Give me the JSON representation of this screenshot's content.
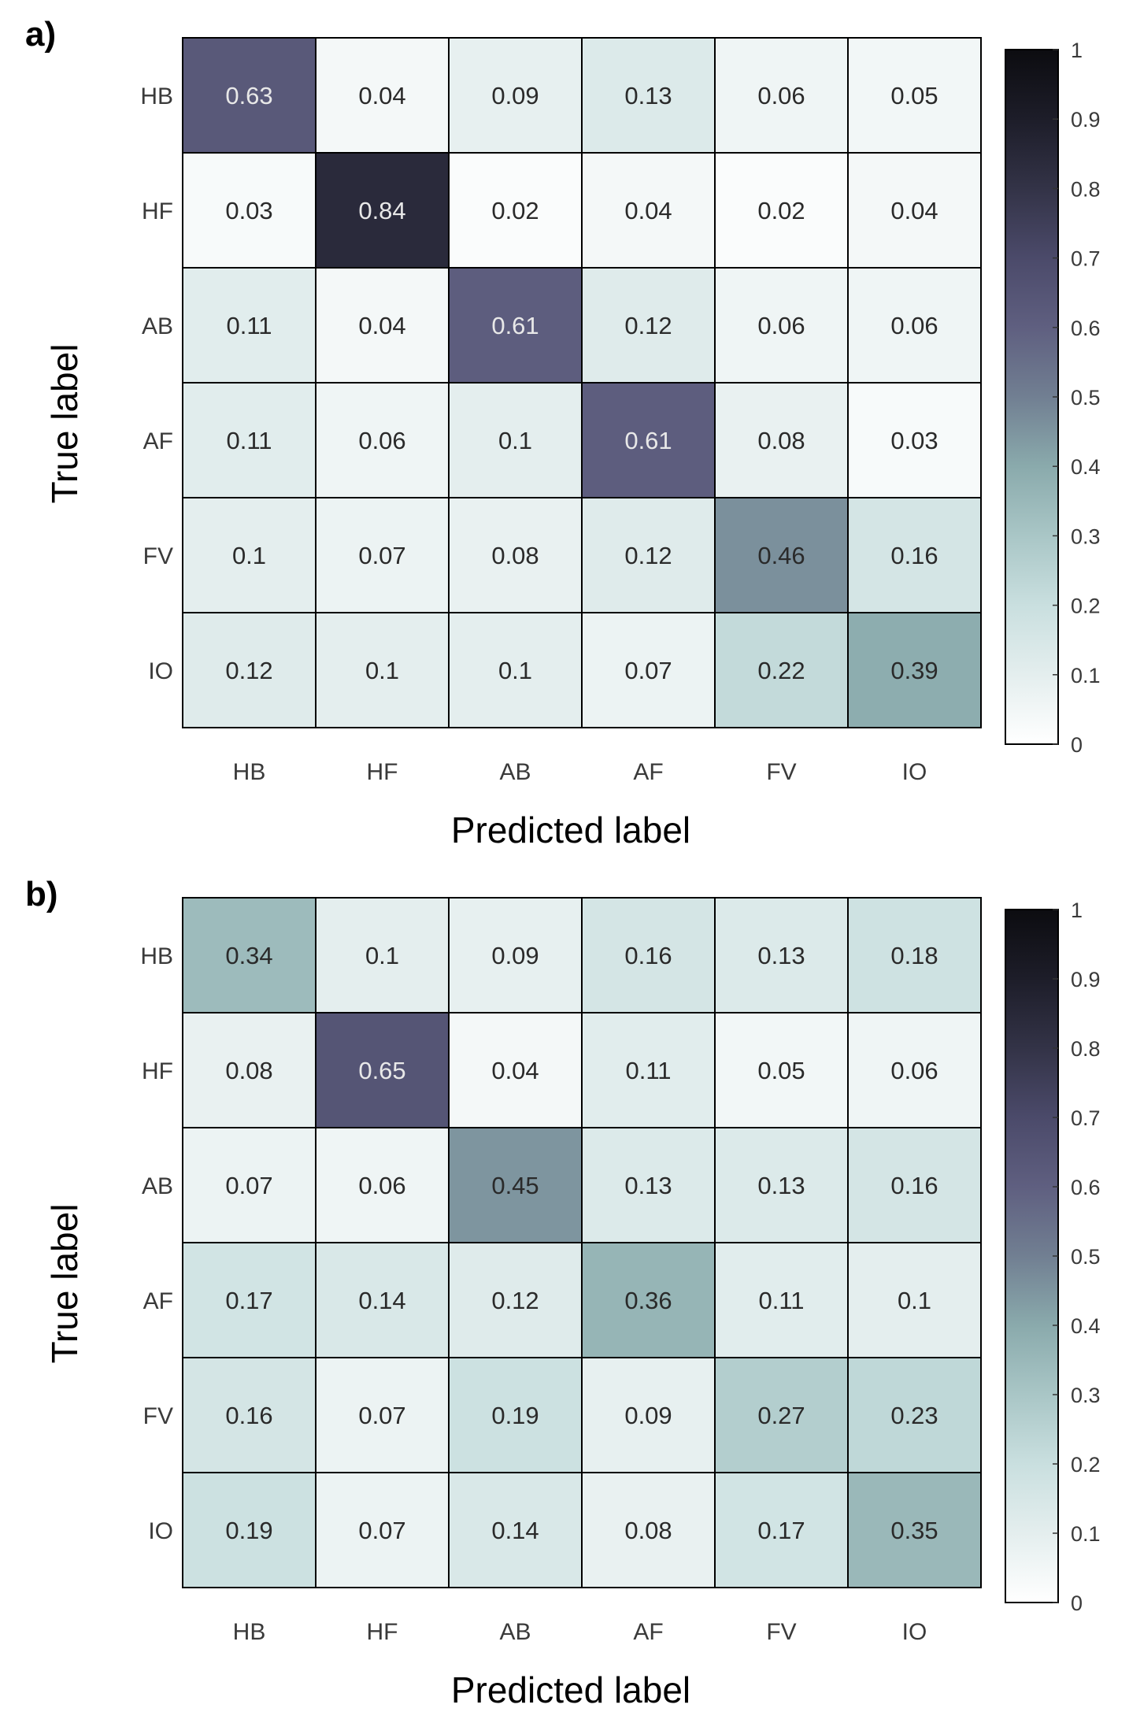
{
  "chart_data": [
    {
      "type": "heatmap",
      "panel_label": "a)",
      "xlabel": "Predicted label",
      "ylabel": "True label",
      "x_categories": [
        "HB",
        "HF",
        "AB",
        "AF",
        "FV",
        "IO"
      ],
      "y_categories": [
        "HB",
        "HF",
        "AB",
        "AF",
        "FV",
        "IO"
      ],
      "values": [
        [
          0.63,
          0.04,
          0.09,
          0.13,
          0.06,
          0.05
        ],
        [
          0.03,
          0.84,
          0.02,
          0.04,
          0.02,
          0.04
        ],
        [
          0.11,
          0.04,
          0.61,
          0.12,
          0.06,
          0.06
        ],
        [
          0.11,
          0.06,
          0.1,
          0.61,
          0.08,
          0.03
        ],
        [
          0.1,
          0.07,
          0.08,
          0.12,
          0.46,
          0.16
        ],
        [
          0.12,
          0.1,
          0.1,
          0.07,
          0.22,
          0.39
        ]
      ],
      "colorbar": {
        "min": 0,
        "max": 1,
        "ticks": [
          "0",
          "0.1",
          "0.2",
          "0.3",
          "0.4",
          "0.5",
          "0.6",
          "0.7",
          "0.8",
          "0.9",
          "1"
        ]
      }
    },
    {
      "type": "heatmap",
      "panel_label": "b)",
      "xlabel": "Predicted label",
      "ylabel": "True label",
      "x_categories": [
        "HB",
        "HF",
        "AB",
        "AF",
        "FV",
        "IO"
      ],
      "y_categories": [
        "HB",
        "HF",
        "AB",
        "AF",
        "FV",
        "IO"
      ],
      "values": [
        [
          0.34,
          0.1,
          0.09,
          0.16,
          0.13,
          0.18
        ],
        [
          0.08,
          0.65,
          0.04,
          0.11,
          0.05,
          0.06
        ],
        [
          0.07,
          0.06,
          0.45,
          0.13,
          0.13,
          0.16
        ],
        [
          0.17,
          0.14,
          0.12,
          0.36,
          0.11,
          0.1
        ],
        [
          0.16,
          0.07,
          0.19,
          0.09,
          0.27,
          0.23
        ],
        [
          0.19,
          0.07,
          0.14,
          0.08,
          0.17,
          0.35
        ]
      ],
      "colorbar": {
        "min": 0,
        "max": 1,
        "ticks": [
          "0",
          "0.1",
          "0.2",
          "0.3",
          "0.4",
          "0.5",
          "0.6",
          "0.7",
          "0.8",
          "0.9",
          "1"
        ]
      }
    }
  ],
  "colormap": {
    "stops": [
      "#ffffff",
      "#e4eeee",
      "#c9dfdf",
      "#a9c6c6",
      "#8aaaac",
      "#717f92",
      "#5f5f80",
      "#4b4a6a",
      "#333347",
      "#1d1d29",
      "#0c0c10"
    ]
  }
}
